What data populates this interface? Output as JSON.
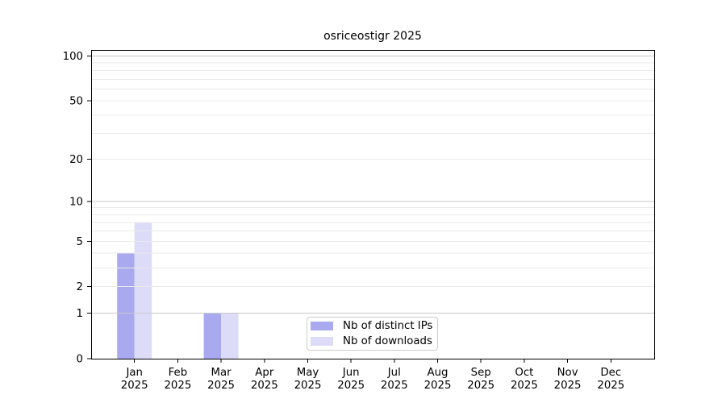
{
  "chart_data": {
    "type": "bar",
    "title": "osriceostigr 2025",
    "categories": [
      "Jan",
      "Feb",
      "Mar",
      "Apr",
      "May",
      "Jun",
      "Jul",
      "Aug",
      "Sep",
      "Oct",
      "Nov",
      "Dec"
    ],
    "tick_label_year": "2025",
    "series": [
      {
        "name": "Nb of distinct IPs",
        "color": "#a9a9f0",
        "values": [
          4,
          0,
          1,
          0,
          0,
          0,
          0,
          0,
          0,
          0,
          0,
          0
        ]
      },
      {
        "name": "Nb of downloads",
        "color": "#dcdcf8",
        "values": [
          7,
          0,
          1,
          0,
          0,
          0,
          0,
          0,
          0,
          0,
          0,
          0
        ]
      }
    ],
    "yscale": "log1p",
    "yticks": [
      0,
      1,
      2,
      5,
      10,
      20,
      50,
      100
    ],
    "ylim": [
      0,
      110
    ],
    "xlim_units": [
      -1,
      12
    ],
    "grid": {
      "minor_values": [
        2,
        3,
        4,
        5,
        6,
        7,
        8,
        9,
        20,
        30,
        40,
        50,
        60,
        70,
        80,
        90
      ],
      "major_values": [
        1,
        10,
        100
      ],
      "minor_color": "#eaeaea",
      "major_color": "#c8c8c8",
      "drawn_over_bars": true
    },
    "legend": {
      "position": "bottom-center"
    },
    "axis_color": "#000000",
    "text_color": "#000000",
    "background_color": "#ffffff"
  }
}
